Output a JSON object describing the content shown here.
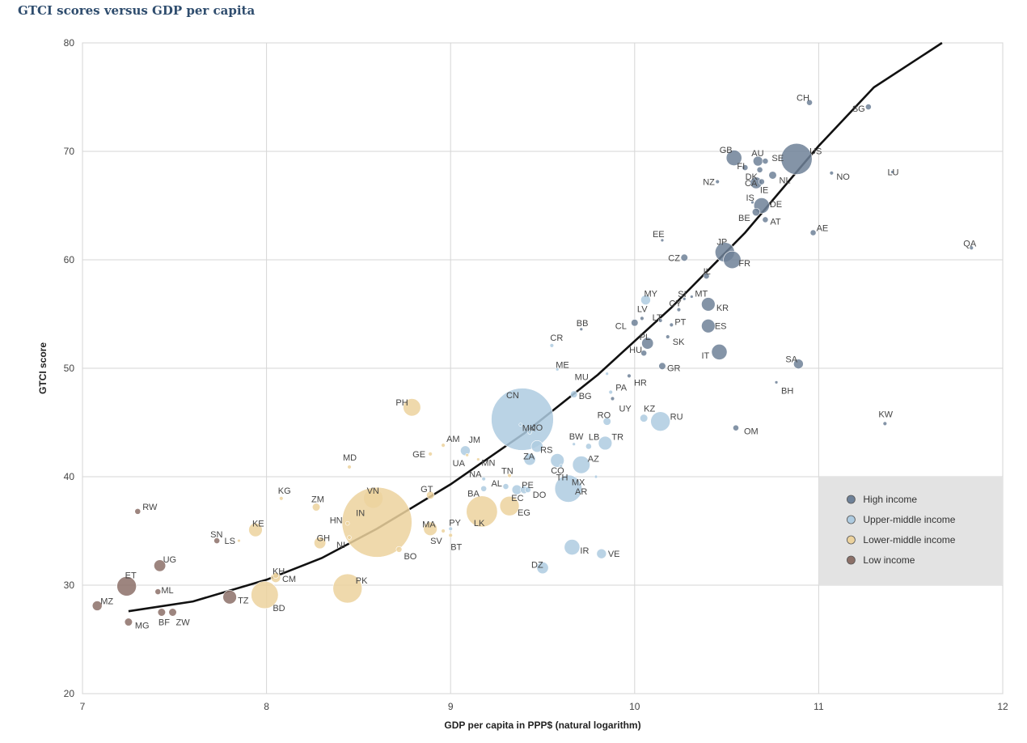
{
  "chart_data": {
    "type": "scatter",
    "title": "GTCI scores versus GDP per capita",
    "xlabel": "GDP per capita in PPP$ (natural logarithm)",
    "ylabel": "GTCI score",
    "xlim": [
      7,
      12
    ],
    "ylim": [
      20,
      80
    ],
    "xticks": [
      7,
      8,
      9,
      10,
      11,
      12
    ],
    "yticks": [
      20,
      30,
      40,
      50,
      60,
      70,
      80
    ],
    "grid": true,
    "legend_position": "bottom-right",
    "legend": [
      {
        "key": "high",
        "label": "High income",
        "color": "#6e8198"
      },
      {
        "key": "umid",
        "label": "Upper-middle income",
        "color": "#aecbe0"
      },
      {
        "key": "lmid",
        "label": "Lower-middle income",
        "color": "#ecd29d"
      },
      {
        "key": "low",
        "label": "Low income",
        "color": "#8c7068"
      }
    ],
    "trend": {
      "label": "",
      "points": [
        [
          7.25,
          27.6
        ],
        [
          7.6,
          28.5
        ],
        [
          8.0,
          30.5
        ],
        [
          8.3,
          32.5
        ],
        [
          8.6,
          35.2
        ],
        [
          9.0,
          39.3
        ],
        [
          9.4,
          44.0
        ],
        [
          9.8,
          49.4
        ],
        [
          10.2,
          55.6
        ],
        [
          10.6,
          62.5
        ],
        [
          11.0,
          70.5
        ],
        [
          11.3,
          75.9
        ],
        [
          11.67,
          80.0
        ]
      ]
    },
    "points": [
      {
        "code": "CH",
        "x": 10.95,
        "y": 74.5,
        "group": "high",
        "size": 1.5
      },
      {
        "code": "SG",
        "x": 11.27,
        "y": 74.1,
        "group": "high",
        "size": 1.5
      },
      {
        "code": "US",
        "x": 10.88,
        "y": 69.3,
        "group": "high",
        "size": 8
      },
      {
        "code": "GB",
        "x": 10.54,
        "y": 69.4,
        "group": "high",
        "size": 4
      },
      {
        "code": "AU",
        "x": 10.67,
        "y": 69.1,
        "group": "high",
        "size": 2.5
      },
      {
        "code": "SE",
        "x": 10.71,
        "y": 69.1,
        "group": "high",
        "size": 1.5
      },
      {
        "code": "FI",
        "x": 10.6,
        "y": 68.5,
        "group": "high",
        "size": 1.5
      },
      {
        "code": "DK",
        "x": 10.68,
        "y": 68.3,
        "group": "high",
        "size": 1.5
      },
      {
        "code": "NL",
        "x": 10.75,
        "y": 67.8,
        "group": "high",
        "size": 2
      },
      {
        "code": "NO",
        "x": 11.07,
        "y": 68.0,
        "group": "high",
        "size": 1
      },
      {
        "code": "LU",
        "x": 11.4,
        "y": 68.1,
        "group": "high",
        "size": 0.8
      },
      {
        "code": "CA",
        "x": 10.66,
        "y": 67.1,
        "group": "high",
        "size": 3
      },
      {
        "code": "IE",
        "x": 10.69,
        "y": 67.2,
        "group": "high",
        "size": 1.5
      },
      {
        "code": "NZ",
        "x": 10.45,
        "y": 67.2,
        "group": "high",
        "size": 1
      },
      {
        "code": "IS",
        "x": 10.64,
        "y": 65.3,
        "group": "high",
        "size": 0.8
      },
      {
        "code": "DE",
        "x": 10.69,
        "y": 65.0,
        "group": "high",
        "size": 4
      },
      {
        "code": "BE",
        "x": 10.66,
        "y": 64.4,
        "group": "high",
        "size": 2
      },
      {
        "code": "AT",
        "x": 10.71,
        "y": 63.7,
        "group": "high",
        "size": 1.5
      },
      {
        "code": "AE",
        "x": 10.97,
        "y": 62.5,
        "group": "high",
        "size": 1.5
      },
      {
        "code": "QA",
        "x": 11.83,
        "y": 61.1,
        "group": "high",
        "size": 1
      },
      {
        "code": "EE",
        "x": 10.15,
        "y": 61.8,
        "group": "high",
        "size": 0.8
      },
      {
        "code": "CZ",
        "x": 10.27,
        "y": 60.2,
        "group": "high",
        "size": 1.8
      },
      {
        "code": "JP",
        "x": 10.49,
        "y": 60.7,
        "group": "high",
        "size": 5
      },
      {
        "code": "FR",
        "x": 10.53,
        "y": 60.0,
        "group": "high",
        "size": 4.5
      },
      {
        "code": "IL",
        "x": 10.39,
        "y": 58.5,
        "group": "high",
        "size": 1.5
      },
      {
        "code": "MT",
        "x": 10.31,
        "y": 56.6,
        "group": "high",
        "size": 0.8
      },
      {
        "code": "SI",
        "x": 10.27,
        "y": 56.4,
        "group": "high",
        "size": 0.8
      },
      {
        "code": "MY",
        "x": 10.06,
        "y": 56.3,
        "group": "umid",
        "size": 2.5
      },
      {
        "code": "CY",
        "x": 10.24,
        "y": 55.4,
        "group": "high",
        "size": 1
      },
      {
        "code": "KR",
        "x": 10.4,
        "y": 55.9,
        "group": "high",
        "size": 3.5
      },
      {
        "code": "LV",
        "x": 10.04,
        "y": 54.6,
        "group": "high",
        "size": 1
      },
      {
        "code": "LT",
        "x": 10.14,
        "y": 54.4,
        "group": "high",
        "size": 1
      },
      {
        "code": "PT",
        "x": 10.2,
        "y": 54.0,
        "group": "high",
        "size": 1
      },
      {
        "code": "CL",
        "x": 10.0,
        "y": 54.2,
        "group": "high",
        "size": 1.8
      },
      {
        "code": "ES",
        "x": 10.4,
        "y": 53.9,
        "group": "high",
        "size": 3.5
      },
      {
        "code": "PL",
        "x": 10.07,
        "y": 52.3,
        "group": "high",
        "size": 3
      },
      {
        "code": "SK",
        "x": 10.18,
        "y": 52.9,
        "group": "high",
        "size": 1
      },
      {
        "code": "CR",
        "x": 9.55,
        "y": 52.1,
        "group": "umid",
        "size": 1
      },
      {
        "code": "BB",
        "x": 9.71,
        "y": 53.6,
        "group": "high",
        "size": 0.8
      },
      {
        "code": "HU",
        "x": 10.05,
        "y": 51.4,
        "group": "high",
        "size": 1.5
      },
      {
        "code": "IT",
        "x": 10.46,
        "y": 51.5,
        "group": "high",
        "size": 4
      },
      {
        "code": "SA",
        "x": 10.89,
        "y": 50.4,
        "group": "high",
        "size": 2.5
      },
      {
        "code": "GR",
        "x": 10.15,
        "y": 50.2,
        "group": "high",
        "size": 1.8
      },
      {
        "code": "ME",
        "x": 9.58,
        "y": 49.9,
        "group": "umid",
        "size": 0.8
      },
      {
        "code": "MU",
        "x": 9.85,
        "y": 49.5,
        "group": "umid",
        "size": 0.8
      },
      {
        "code": "HR",
        "x": 9.97,
        "y": 49.3,
        "group": "high",
        "size": 1
      },
      {
        "code": "BH",
        "x": 10.77,
        "y": 48.7,
        "group": "high",
        "size": 0.8
      },
      {
        "code": "BG",
        "x": 9.67,
        "y": 47.6,
        "group": "umid",
        "size": 1.8
      },
      {
        "code": "PA",
        "x": 9.87,
        "y": 47.8,
        "group": "umid",
        "size": 1
      },
      {
        "code": "UY",
        "x": 9.88,
        "y": 47.2,
        "group": "high",
        "size": 1
      },
      {
        "code": "PH",
        "x": 8.79,
        "y": 46.4,
        "group": "lmid",
        "size": 4.5
      },
      {
        "code": "CN",
        "x": 9.39,
        "y": 45.3,
        "group": "umid",
        "size": 16
      },
      {
        "code": "MK",
        "x": 9.38,
        "y": 44.8,
        "group": "umid",
        "size": 0.8
      },
      {
        "code": "RO",
        "x": 9.85,
        "y": 45.1,
        "group": "umid",
        "size": 2
      },
      {
        "code": "KZ",
        "x": 10.05,
        "y": 45.4,
        "group": "umid",
        "size": 2
      },
      {
        "code": "RU",
        "x": 10.14,
        "y": 45.1,
        "group": "umid",
        "size": 5
      },
      {
        "code": "OM",
        "x": 10.55,
        "y": 44.5,
        "group": "high",
        "size": 1.5
      },
      {
        "code": "KW",
        "x": 11.36,
        "y": 44.9,
        "group": "high",
        "size": 1
      },
      {
        "code": "JO",
        "x": 9.43,
        "y": 44.1,
        "group": "umid",
        "size": 1
      },
      {
        "code": "BW",
        "x": 9.67,
        "y": 43.0,
        "group": "umid",
        "size": 0.8
      },
      {
        "code": "LB",
        "x": 9.75,
        "y": 42.8,
        "group": "umid",
        "size": 1.5
      },
      {
        "code": "TR",
        "x": 9.84,
        "y": 43.1,
        "group": "umid",
        "size": 3.5
      },
      {
        "code": "RS",
        "x": 9.47,
        "y": 42.8,
        "group": "umid",
        "size": 3
      },
      {
        "code": "AM",
        "x": 8.96,
        "y": 42.9,
        "group": "lmid",
        "size": 1
      },
      {
        "code": "JM",
        "x": 9.08,
        "y": 42.4,
        "group": "umid",
        "size": 2.5
      },
      {
        "code": "GE",
        "x": 8.89,
        "y": 42.1,
        "group": "lmid",
        "size": 1
      },
      {
        "code": "UA",
        "x": 9.09,
        "y": 42.0,
        "group": "lmid",
        "size": 0.8
      },
      {
        "code": "MN",
        "x": 9.15,
        "y": 41.6,
        "group": "lmid",
        "size": 0.8
      },
      {
        "code": "ZA",
        "x": 9.43,
        "y": 41.6,
        "group": "umid",
        "size": 3
      },
      {
        "code": "CO",
        "x": 9.58,
        "y": 41.5,
        "group": "umid",
        "size": 3.5
      },
      {
        "code": "AZ",
        "x": 9.71,
        "y": 41.1,
        "group": "umid",
        "size": 4.5
      },
      {
        "code": "AR",
        "x": 9.79,
        "y": 40.0,
        "group": "umid",
        "size": 0.8
      },
      {
        "code": "TH",
        "x": 9.6,
        "y": 41.0,
        "group": "umid",
        "size": 0.8
      },
      {
        "code": "MD",
        "x": 8.45,
        "y": 40.9,
        "group": "lmid",
        "size": 1
      },
      {
        "code": "TN",
        "x": 9.32,
        "y": 40.1,
        "group": "lmid",
        "size": 1
      },
      {
        "code": "NA",
        "x": 9.18,
        "y": 39.8,
        "group": "umid",
        "size": 1
      },
      {
        "code": "MX",
        "x": 9.64,
        "y": 38.9,
        "group": "umid",
        "size": 7
      },
      {
        "code": "AL",
        "x": 9.3,
        "y": 39.1,
        "group": "umid",
        "size": 1.5
      },
      {
        "code": "BA",
        "x": 9.18,
        "y": 38.9,
        "group": "umid",
        "size": 1.5
      },
      {
        "code": "PE",
        "x": 9.36,
        "y": 38.8,
        "group": "umid",
        "size": 2.5
      },
      {
        "code": "EC",
        "x": 9.4,
        "y": 38.8,
        "group": "umid",
        "size": 2
      },
      {
        "code": "DO",
        "x": 9.42,
        "y": 38.8,
        "group": "umid",
        "size": 1.5
      },
      {
        "code": "KG",
        "x": 8.08,
        "y": 38.0,
        "group": "lmid",
        "size": 1
      },
      {
        "code": "VN",
        "x": 8.58,
        "y": 38.0,
        "group": "lmid",
        "size": 5
      },
      {
        "code": "GT",
        "x": 8.89,
        "y": 38.3,
        "group": "lmid",
        "size": 2
      },
      {
        "code": "LK",
        "x": 9.17,
        "y": 36.8,
        "group": "lmid",
        "size": 8
      },
      {
        "code": "EG",
        "x": 9.32,
        "y": 37.3,
        "group": "lmid",
        "size": 5
      },
      {
        "code": "RW",
        "x": 7.3,
        "y": 36.8,
        "group": "low",
        "size": 1.5
      },
      {
        "code": "ZM",
        "x": 8.27,
        "y": 37.2,
        "group": "lmid",
        "size": 2
      },
      {
        "code": "IN",
        "x": 8.6,
        "y": 35.8,
        "group": "lmid",
        "size": 18
      },
      {
        "code": "HN",
        "x": 8.44,
        "y": 35.7,
        "group": "lmid",
        "size": 1
      },
      {
        "code": "KE",
        "x": 7.94,
        "y": 35.1,
        "group": "lmid",
        "size": 3.5
      },
      {
        "code": "MA",
        "x": 8.89,
        "y": 35.2,
        "group": "lmid",
        "size": 3.5
      },
      {
        "code": "PY",
        "x": 9.0,
        "y": 35.2,
        "group": "umid",
        "size": 1
      },
      {
        "code": "SV",
        "x": 8.96,
        "y": 35.0,
        "group": "lmid",
        "size": 1
      },
      {
        "code": "BT",
        "x": 9.0,
        "y": 34.6,
        "group": "lmid",
        "size": 1
      },
      {
        "code": "SN",
        "x": 7.73,
        "y": 34.1,
        "group": "low",
        "size": 1.5
      },
      {
        "code": "LS",
        "x": 7.85,
        "y": 34.1,
        "group": "lmid",
        "size": 0.8
      },
      {
        "code": "GH",
        "x": 8.29,
        "y": 33.9,
        "group": "lmid",
        "size": 3
      },
      {
        "code": "NI",
        "x": 8.45,
        "y": 34.4,
        "group": "lmid",
        "size": 1
      },
      {
        "code": "BO",
        "x": 8.72,
        "y": 33.3,
        "group": "lmid",
        "size": 1.5
      },
      {
        "code": "IR",
        "x": 9.66,
        "y": 33.5,
        "group": "umid",
        "size": 4
      },
      {
        "code": "VE",
        "x": 9.82,
        "y": 32.9,
        "group": "umid",
        "size": 2.5
      },
      {
        "code": "UG",
        "x": 7.42,
        "y": 31.8,
        "group": "low",
        "size": 3
      },
      {
        "code": "DZ",
        "x": 9.5,
        "y": 31.6,
        "group": "umid",
        "size": 3
      },
      {
        "code": "KH",
        "x": 8.05,
        "y": 30.7,
        "group": "lmid",
        "size": 2.5
      },
      {
        "code": "ET",
        "x": 7.24,
        "y": 29.9,
        "group": "low",
        "size": 5
      },
      {
        "code": "ML",
        "x": 7.41,
        "y": 29.4,
        "group": "low",
        "size": 1.5
      },
      {
        "code": "CM",
        "x": 8.05,
        "y": 30.9,
        "group": "lmid",
        "size": 1.5
      },
      {
        "code": "PK",
        "x": 8.44,
        "y": 29.7,
        "group": "lmid",
        "size": 7.5
      },
      {
        "code": "TZ",
        "x": 7.8,
        "y": 28.9,
        "group": "low",
        "size": 3.5
      },
      {
        "code": "BD",
        "x": 7.99,
        "y": 29.1,
        "group": "lmid",
        "size": 7
      },
      {
        "code": "MZ",
        "x": 7.08,
        "y": 28.1,
        "group": "low",
        "size": 2.5
      },
      {
        "code": "BF",
        "x": 7.43,
        "y": 27.5,
        "group": "low",
        "size": 2
      },
      {
        "code": "ZW",
        "x": 7.49,
        "y": 27.5,
        "group": "low",
        "size": 2
      },
      {
        "code": "MG",
        "x": 7.25,
        "y": 26.6,
        "group": "low",
        "size": 2
      }
    ]
  }
}
